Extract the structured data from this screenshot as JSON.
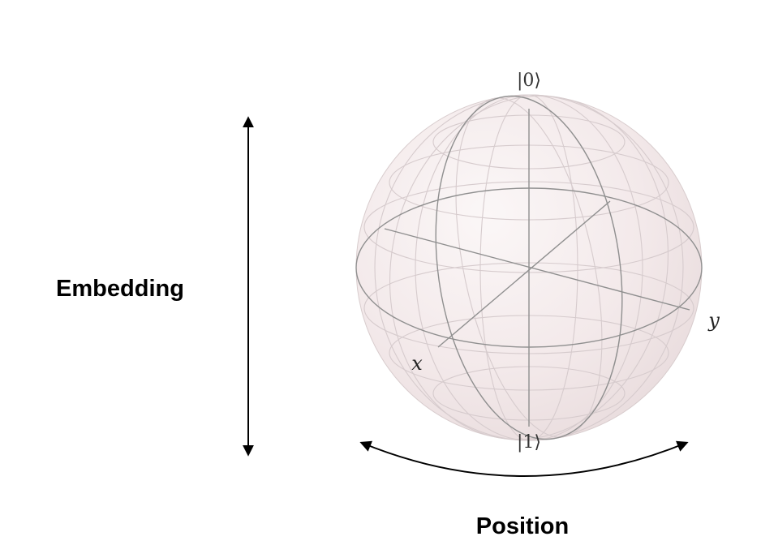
{
  "labels": {
    "embedding": "Embedding",
    "position": "Position",
    "ket_zero": "|0⟩",
    "ket_one": "|1⟩",
    "axis_x": "x",
    "axis_y": "y"
  },
  "colors": {
    "sphere_fill": "#f3e9ea",
    "sphere_edge": "#cfc3c4",
    "grid_light": "#d8cdcf",
    "grid_dark": "#8e8e8e",
    "arrow": "#000000"
  }
}
